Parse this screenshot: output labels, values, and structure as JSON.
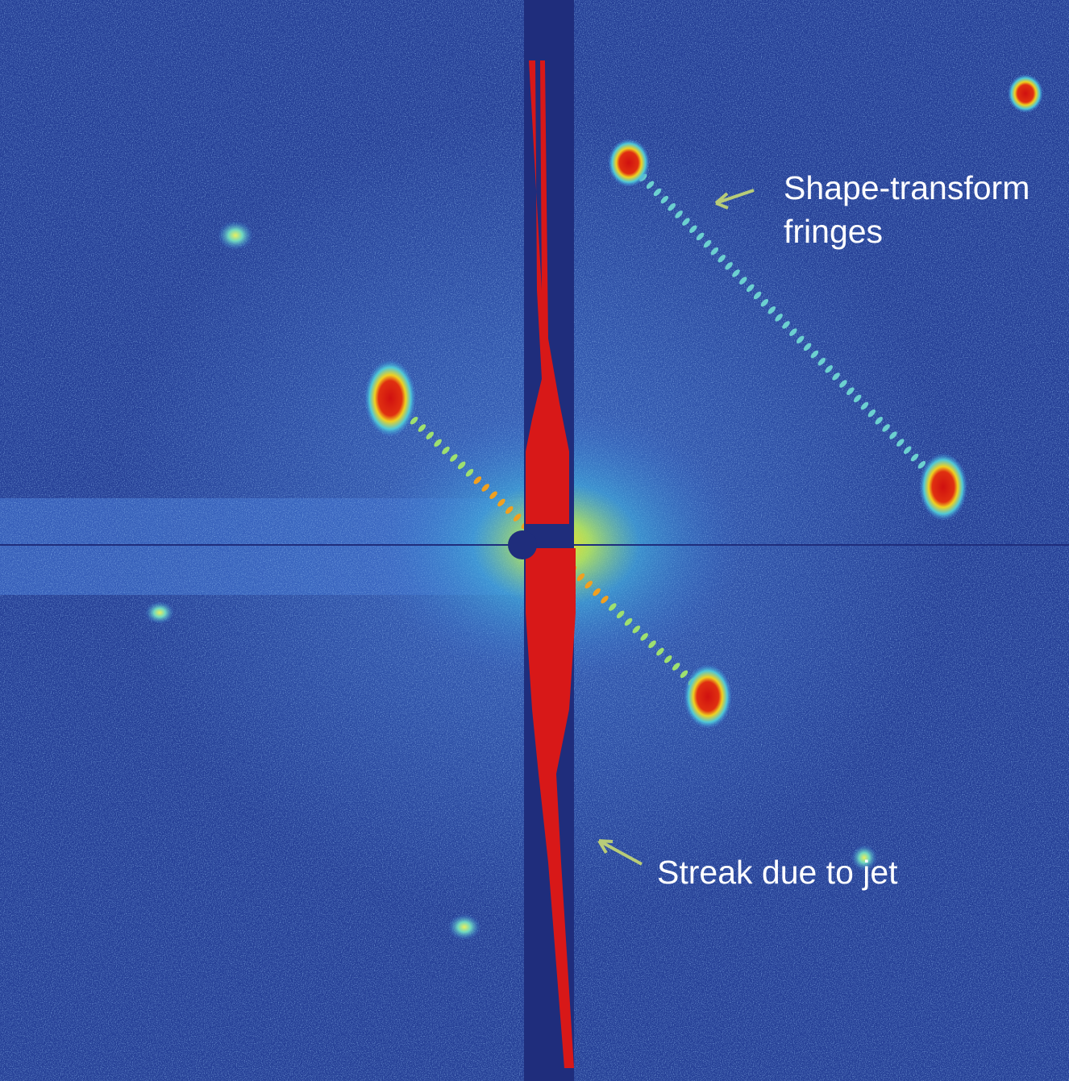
{
  "annotations": {
    "fringes": [
      "Shape-transform",
      "fringes"
    ],
    "streak": "Streak due to jet"
  }
}
